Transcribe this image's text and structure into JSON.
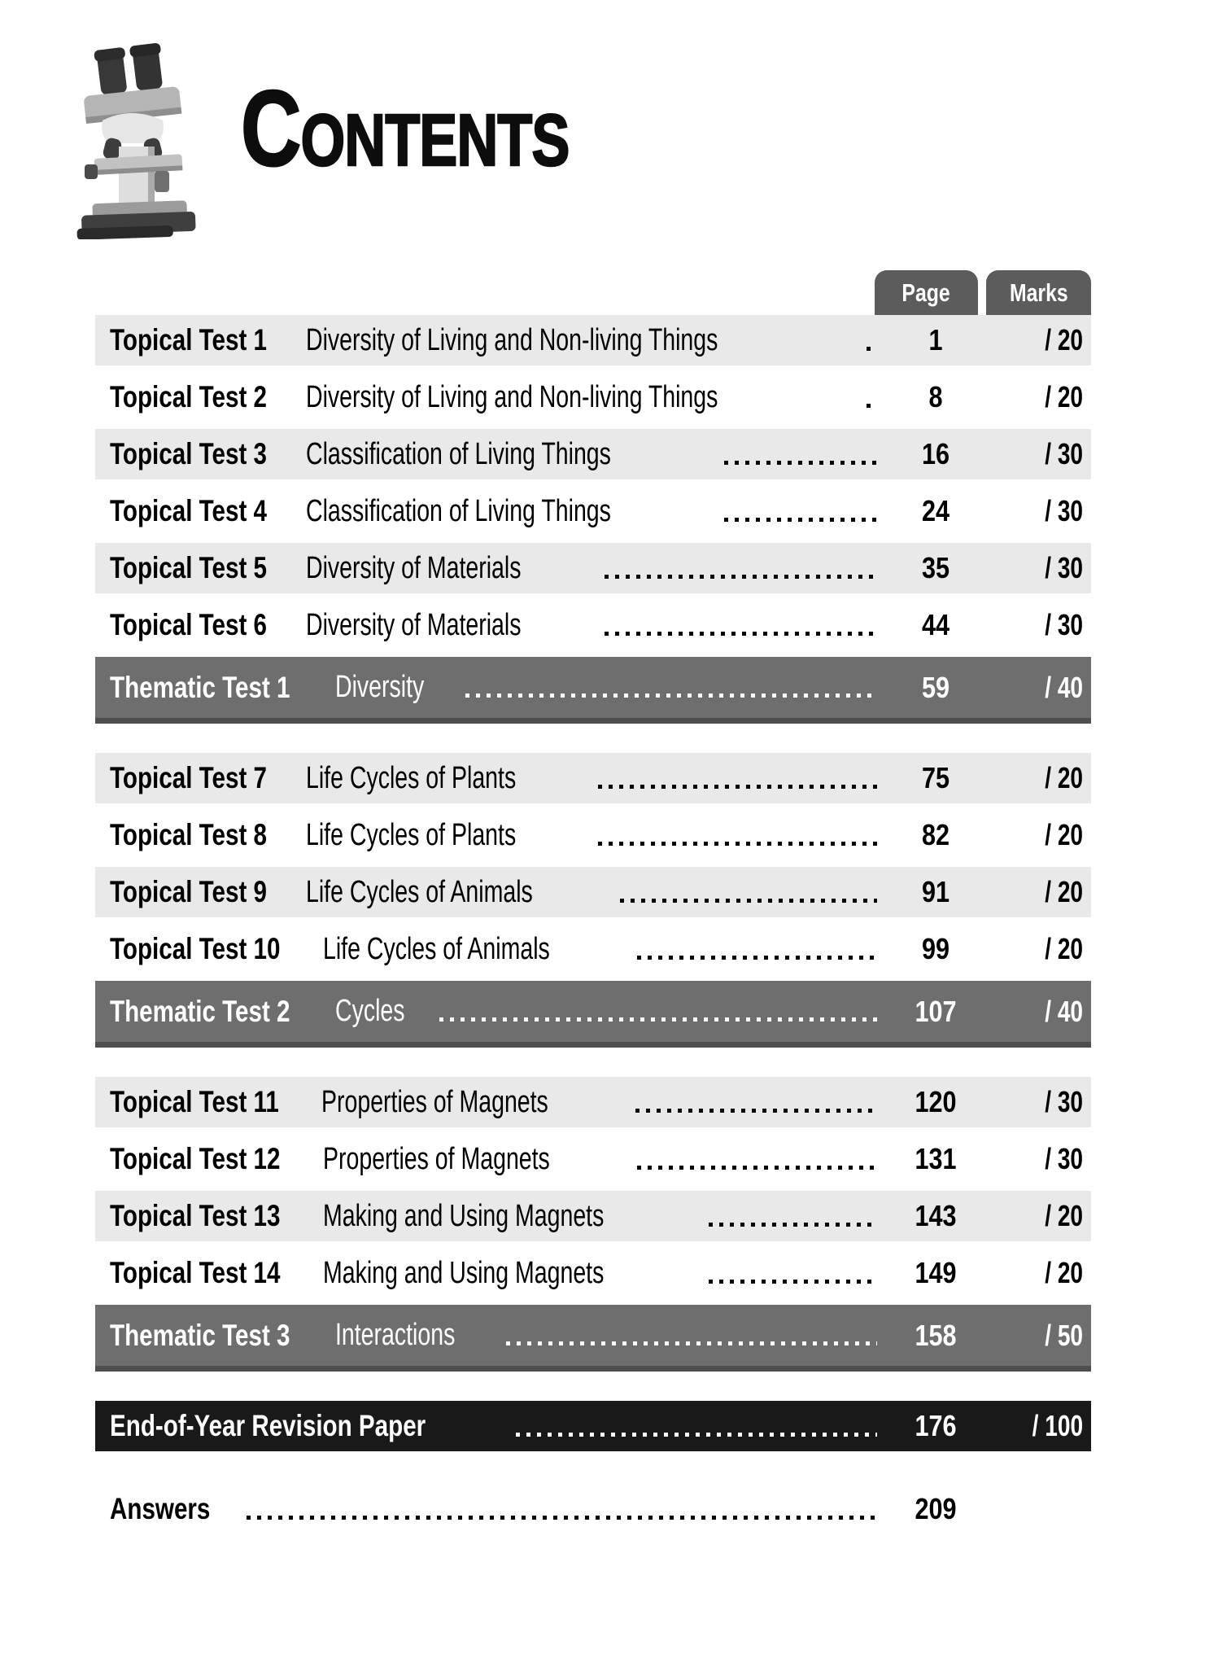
{
  "title": {
    "initial": "C",
    "rest": "ONTENTS"
  },
  "header_icon": "microscope-icon",
  "columns": {
    "page": "Page",
    "marks": "Marks"
  },
  "colors": {
    "shaded_row": "#e9e9e9",
    "thematic_bar": "#6e6e6e",
    "thematic_bar_shadow": "#4e4e4e",
    "tab": "#5c5c5c",
    "revision_bar": "#191919",
    "text": "#000000",
    "inverse_text": "#ffffff"
  },
  "sections": [
    {
      "rows": [
        {
          "label": "Topical Test 1",
          "topic": "Diversity of Living and Non-living Things",
          "page": "1",
          "marks": "/ 20",
          "style": "shaded"
        },
        {
          "label": "Topical Test 2",
          "topic": "Diversity of Living and Non-living Things",
          "page": "8",
          "marks": "/ 20",
          "style": "plain"
        },
        {
          "label": "Topical Test 3",
          "topic": "Classification of Living Things",
          "page": "16",
          "marks": "/ 30",
          "style": "shaded"
        },
        {
          "label": "Topical Test 4",
          "topic": "Classification of Living Things",
          "page": "24",
          "marks": "/ 30",
          "style": "plain"
        },
        {
          "label": "Topical Test 5",
          "topic": "Diversity of Materials",
          "page": "35",
          "marks": "/ 30",
          "style": "shaded"
        },
        {
          "label": "Topical Test 6",
          "topic": "Diversity of Materials",
          "page": "44",
          "marks": "/ 30",
          "style": "plain"
        },
        {
          "label": "Thematic Test 1",
          "topic": "Diversity",
          "page": "59",
          "marks": "/ 40",
          "style": "dark"
        }
      ]
    },
    {
      "rows": [
        {
          "label": "Topical Test 7",
          "topic": "Life Cycles of Plants",
          "page": "75",
          "marks": "/ 20",
          "style": "shaded"
        },
        {
          "label": "Topical Test 8",
          "topic": "Life Cycles of Plants",
          "page": "82",
          "marks": "/ 20",
          "style": "plain"
        },
        {
          "label": "Topical Test 9",
          "topic": "Life Cycles of Animals",
          "page": "91",
          "marks": "/ 20",
          "style": "shaded"
        },
        {
          "label": "Topical Test 10",
          "topic": "Life Cycles of Animals",
          "page": "99",
          "marks": "/ 20",
          "style": "plain"
        },
        {
          "label": "Thematic Test 2",
          "topic": "Cycles",
          "page": "107",
          "marks": "/ 40",
          "style": "dark"
        }
      ]
    },
    {
      "rows": [
        {
          "label": "Topical Test 11",
          "topic": "Properties of Magnets",
          "page": "120",
          "marks": "/ 30",
          "style": "shaded"
        },
        {
          "label": "Topical Test 12",
          "topic": "Properties of Magnets",
          "page": "131",
          "marks": "/ 30",
          "style": "plain"
        },
        {
          "label": "Topical Test 13",
          "topic": "Making and Using Magnets",
          "page": "143",
          "marks": "/ 20",
          "style": "shaded"
        },
        {
          "label": "Topical Test 14",
          "topic": "Making and Using Magnets",
          "page": "149",
          "marks": "/ 20",
          "style": "plain"
        },
        {
          "label": "Thematic Test 3",
          "topic": "Interactions",
          "page": "158",
          "marks": "/ 50",
          "style": "dark"
        }
      ]
    },
    {
      "rows": [
        {
          "label": "End-of-Year Revision Paper",
          "topic": "",
          "page": "176",
          "marks": "/ 100",
          "style": "black",
          "wide": true
        }
      ]
    },
    {
      "rows": [
        {
          "label": "Answers",
          "topic": "",
          "page": "209",
          "marks": "",
          "style": "plain answers",
          "wide": true
        }
      ]
    }
  ]
}
